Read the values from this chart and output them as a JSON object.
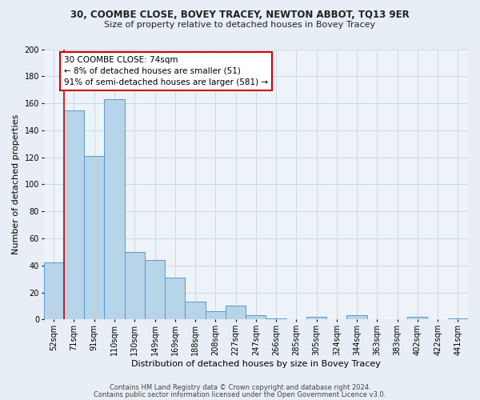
{
  "title1": "30, COOMBE CLOSE, BOVEY TRACEY, NEWTON ABBOT, TQ13 9ER",
  "title2": "Size of property relative to detached houses in Bovey Tracey",
  "xlabel": "Distribution of detached houses by size in Bovey Tracey",
  "ylabel": "Number of detached properties",
  "bin_labels": [
    "52sqm",
    "71sqm",
    "91sqm",
    "110sqm",
    "130sqm",
    "149sqm",
    "169sqm",
    "188sqm",
    "208sqm",
    "227sqm",
    "247sqm",
    "266sqm",
    "285sqm",
    "305sqm",
    "324sqm",
    "344sqm",
    "363sqm",
    "383sqm",
    "402sqm",
    "422sqm",
    "441sqm"
  ],
  "bar_heights": [
    42,
    155,
    121,
    163,
    50,
    44,
    31,
    13,
    6,
    10,
    3,
    1,
    0,
    2,
    0,
    3,
    0,
    0,
    2,
    0,
    1
  ],
  "bar_color": "#b8d4e8",
  "bar_edge_color": "#5599cc",
  "vline_x": 0.5,
  "vline_color": "#cc0000",
  "ylim": [
    0,
    200
  ],
  "yticks": [
    0,
    20,
    40,
    60,
    80,
    100,
    120,
    140,
    160,
    180,
    200
  ],
  "annotation_title": "30 COOMBE CLOSE: 74sqm",
  "annotation_line1": "← 8% of detached houses are smaller (51)",
  "annotation_line2": "91% of semi-detached houses are larger (581) →",
  "annotation_box_facecolor": "#ffffff",
  "annotation_box_edgecolor": "#cc0000",
  "footer1": "Contains HM Land Registry data © Crown copyright and database right 2024.",
  "footer2": "Contains public sector information licensed under the Open Government Licence v3.0.",
  "bg_color": "#e8eef5",
  "plot_bg_color": "#eef3f9",
  "grid_color": "#c5d5e5",
  "title1_fontsize": 8.5,
  "title2_fontsize": 8.0,
  "xlabel_fontsize": 8.0,
  "ylabel_fontsize": 8.0,
  "tick_fontsize": 7.0,
  "annot_fontsize": 7.5,
  "footer_fontsize": 6.0
}
